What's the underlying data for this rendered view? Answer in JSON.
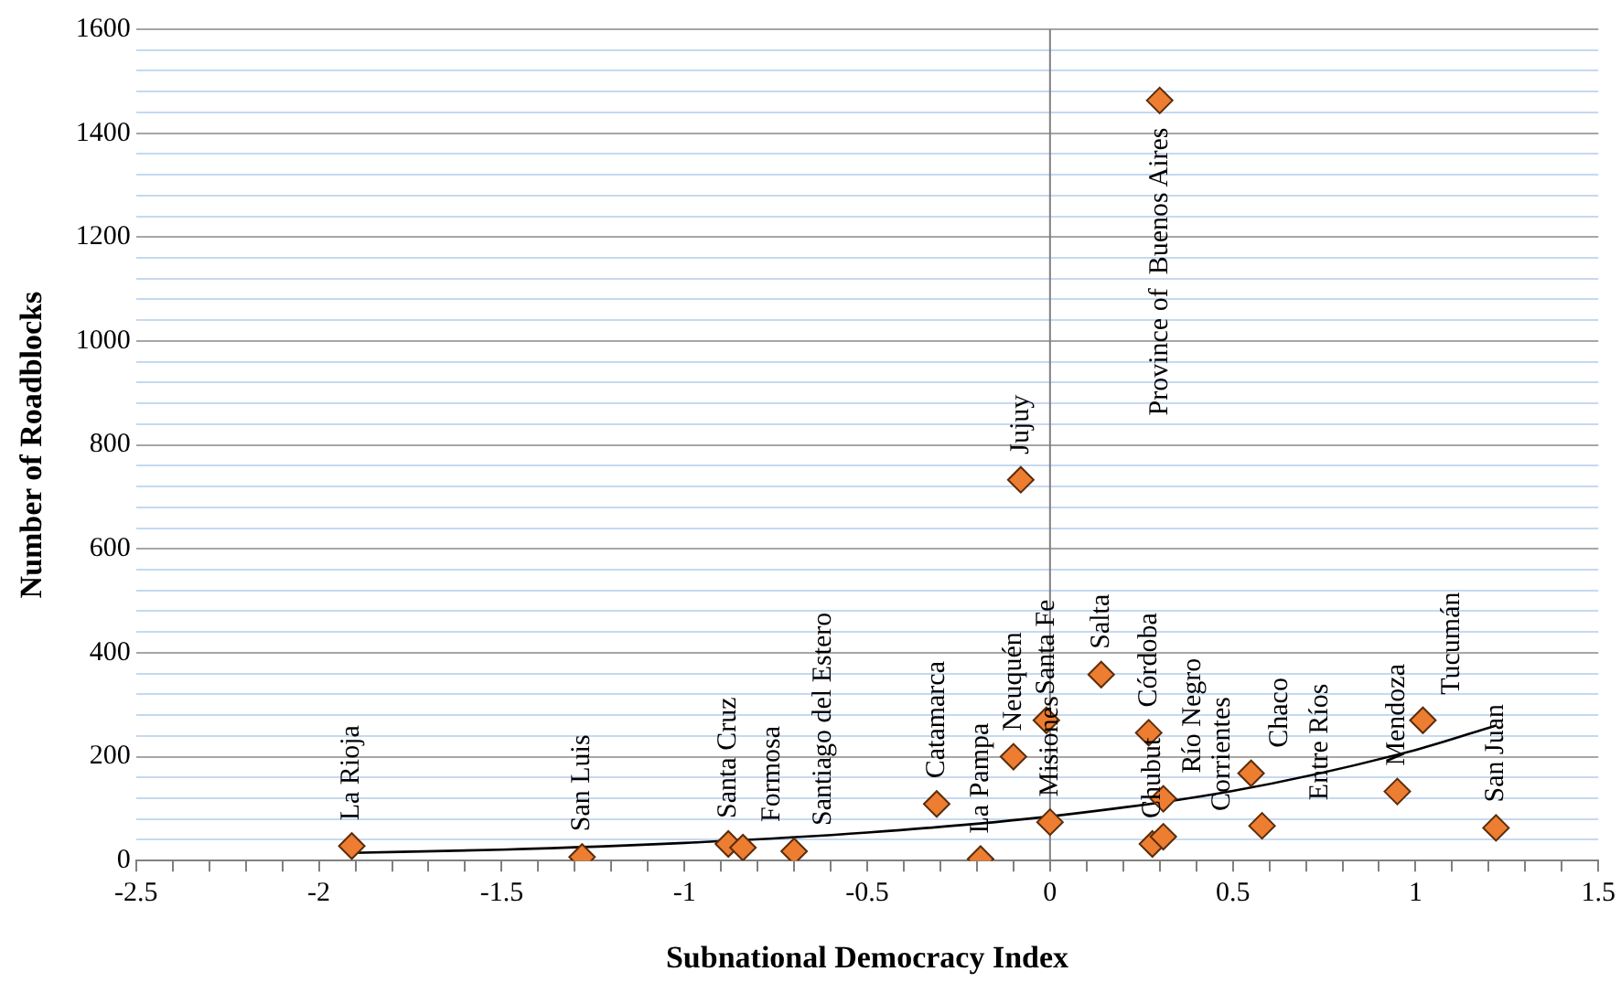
{
  "chart_data": {
    "type": "scatter",
    "xlabel": "Subnational Democracy Index",
    "ylabel": "Number of Roadblocks",
    "xlim": [
      -2.5,
      1.5
    ],
    "xticks": [
      -2.5,
      {
        "value": -2.4,
        "label": null
      },
      {
        "value": -2.3,
        "label": null
      },
      {
        "value": -2.2,
        "label": null
      },
      {
        "value": -2.1,
        "label": null
      },
      -2,
      {
        "value": -1.9,
        "label": null
      },
      {
        "value": -1.8,
        "label": null
      },
      {
        "value": -1.7,
        "label": null
      },
      {
        "value": -1.6,
        "label": null
      },
      -1.5,
      {
        "value": -1.4,
        "label": null
      },
      {
        "value": -1.3,
        "label": null
      },
      {
        "value": -1.2,
        "label": null
      },
      {
        "value": -1.1,
        "label": null
      },
      -1,
      {
        "value": -0.9,
        "label": null
      },
      {
        "value": -0.8,
        "label": null
      },
      {
        "value": -0.7,
        "label": null
      },
      {
        "value": -0.6,
        "label": null
      },
      -0.5,
      {
        "value": -0.4,
        "label": null
      },
      {
        "value": -0.3,
        "label": null
      },
      {
        "value": -0.2,
        "label": null
      },
      {
        "value": -0.1,
        "label": null
      },
      0,
      {
        "value": 0.1,
        "label": null
      },
      {
        "value": 0.2,
        "label": null
      },
      {
        "value": 0.3,
        "label": null
      },
      {
        "value": 0.4,
        "label": null
      },
      0.5,
      {
        "value": 0.6,
        "label": null
      },
      {
        "value": 0.7,
        "label": null
      },
      {
        "value": 0.8,
        "label": null
      },
      {
        "value": 0.9,
        "label": null
      },
      1,
      {
        "value": 1.1,
        "label": null
      },
      {
        "value": 1.2,
        "label": null
      },
      {
        "value": 1.3,
        "label": null
      },
      {
        "value": 1.4,
        "label": null
      },
      1.5
    ],
    "ylim": [
      0,
      1600
    ],
    "yticks": [
      0,
      {
        "value": 40,
        "label": null
      },
      {
        "value": 80,
        "label": null
      },
      {
        "value": 120,
        "label": null
      },
      {
        "value": 160,
        "label": null
      },
      200,
      {
        "value": 240,
        "label": null
      },
      {
        "value": 280,
        "label": null
      },
      {
        "value": 320,
        "label": null
      },
      {
        "value": 360,
        "label": null
      },
      400,
      {
        "value": 440,
        "label": null
      },
      {
        "value": 480,
        "label": null
      },
      {
        "value": 520,
        "label": null
      },
      {
        "value": 560,
        "label": null
      },
      600,
      {
        "value": 640,
        "label": null
      },
      {
        "value": 680,
        "label": null
      },
      {
        "value": 720,
        "label": null
      },
      {
        "value": 760,
        "label": null
      },
      800,
      {
        "value": 840,
        "label": null
      },
      {
        "value": 880,
        "label": null
      },
      {
        "value": 920,
        "label": null
      },
      {
        "value": 960,
        "label": null
      },
      1000,
      {
        "value": 1040,
        "label": null
      },
      {
        "value": 1080,
        "label": null
      },
      {
        "value": 1120,
        "label": null
      },
      {
        "value": 1160,
        "label": null
      },
      1200,
      {
        "value": 1240,
        "label": null
      },
      {
        "value": 1280,
        "label": null
      },
      {
        "value": 1320,
        "label": null
      },
      {
        "value": 1360,
        "label": null
      },
      1400,
      {
        "value": 1440,
        "label": null
      },
      {
        "value": 1480,
        "label": null
      },
      {
        "value": 1520,
        "label": null
      },
      {
        "value": 1560,
        "label": null
      },
      1600
    ],
    "grid": "y",
    "marker": "diamond",
    "ref_lines": [
      {
        "axis": "x",
        "value": 0,
        "color": "#808080"
      }
    ],
    "series": [
      {
        "type": "scatter",
        "color": "#ed7d31",
        "x": [
          -1.91,
          -1.28,
          -0.88,
          -0.84,
          -0.7,
          -0.31,
          -0.19,
          -0.1,
          -0.01,
          0.0,
          0.14,
          0.27,
          0.31,
          0.28,
          0.31,
          0.55,
          0.58,
          0.95,
          1.02,
          1.22,
          -0.08,
          0.3
        ],
        "values": [
          28,
          7,
          32,
          25,
          18,
          109,
          3,
          200,
          270,
          74,
          358,
          246,
          119,
          32,
          46,
          168,
          67,
          133,
          270,
          63,
          733,
          1463
        ]
      },
      {
        "type": "line",
        "color": "#000000",
        "marker": "none",
        "x": [
          -1.91,
          -1.5,
          -1,
          -0.5,
          0,
          0.5,
          1,
          1.22
        ],
        "values": [
          15,
          21,
          34,
          54,
          85,
          134,
          213,
          260
        ]
      }
    ],
    "annotations": [
      {
        "text": "La Rioja",
        "x": -1.91,
        "y": 28
      },
      {
        "text": "San Luis",
        "x": -1.28,
        "y": 7
      },
      {
        "text": "Santa Cruz",
        "x": -0.88,
        "y": 32
      },
      {
        "text": "Formosa",
        "x": -0.84,
        "y": 25
      },
      {
        "text": "Santiago del Estero",
        "x": -0.7,
        "y": 18
      },
      {
        "text": "Catamarca",
        "x": -0.31,
        "y": 109
      },
      {
        "text": "La Pampa",
        "x": -0.19,
        "y": 3
      },
      {
        "text": "Neuquén",
        "x": -0.1,
        "y": 200
      },
      {
        "text": "Santa Fe",
        "x": -0.01,
        "y": 270
      },
      {
        "text": "Misiones",
        "x": 0.0,
        "y": 74
      },
      {
        "text": "Salta",
        "x": 0.14,
        "y": 358
      },
      {
        "text": "Córdoba",
        "x": 0.27,
        "y": 246
      },
      {
        "text": "Río Negro",
        "x": 0.31,
        "y": 119
      },
      {
        "text": "Chubut",
        "x": 0.28,
        "y": 32
      },
      {
        "text": "Corrientes",
        "x": 0.31,
        "y": 46
      },
      {
        "text": "Chaco",
        "x": 0.55,
        "y": 168
      },
      {
        "text": "Entre Ríos",
        "x": 0.58,
        "y": 67
      },
      {
        "text": "Mendoza",
        "x": 0.95,
        "y": 133
      },
      {
        "text": "Tucumán",
        "x": 1.02,
        "y": 270
      },
      {
        "text": "San Juan",
        "x": 1.22,
        "y": 63
      },
      {
        "text": "Jujuy",
        "x": -0.08,
        "y": 733
      },
      {
        "text": "Province of  Buenos Aires",
        "x": 0.3,
        "y": 1463
      }
    ]
  }
}
